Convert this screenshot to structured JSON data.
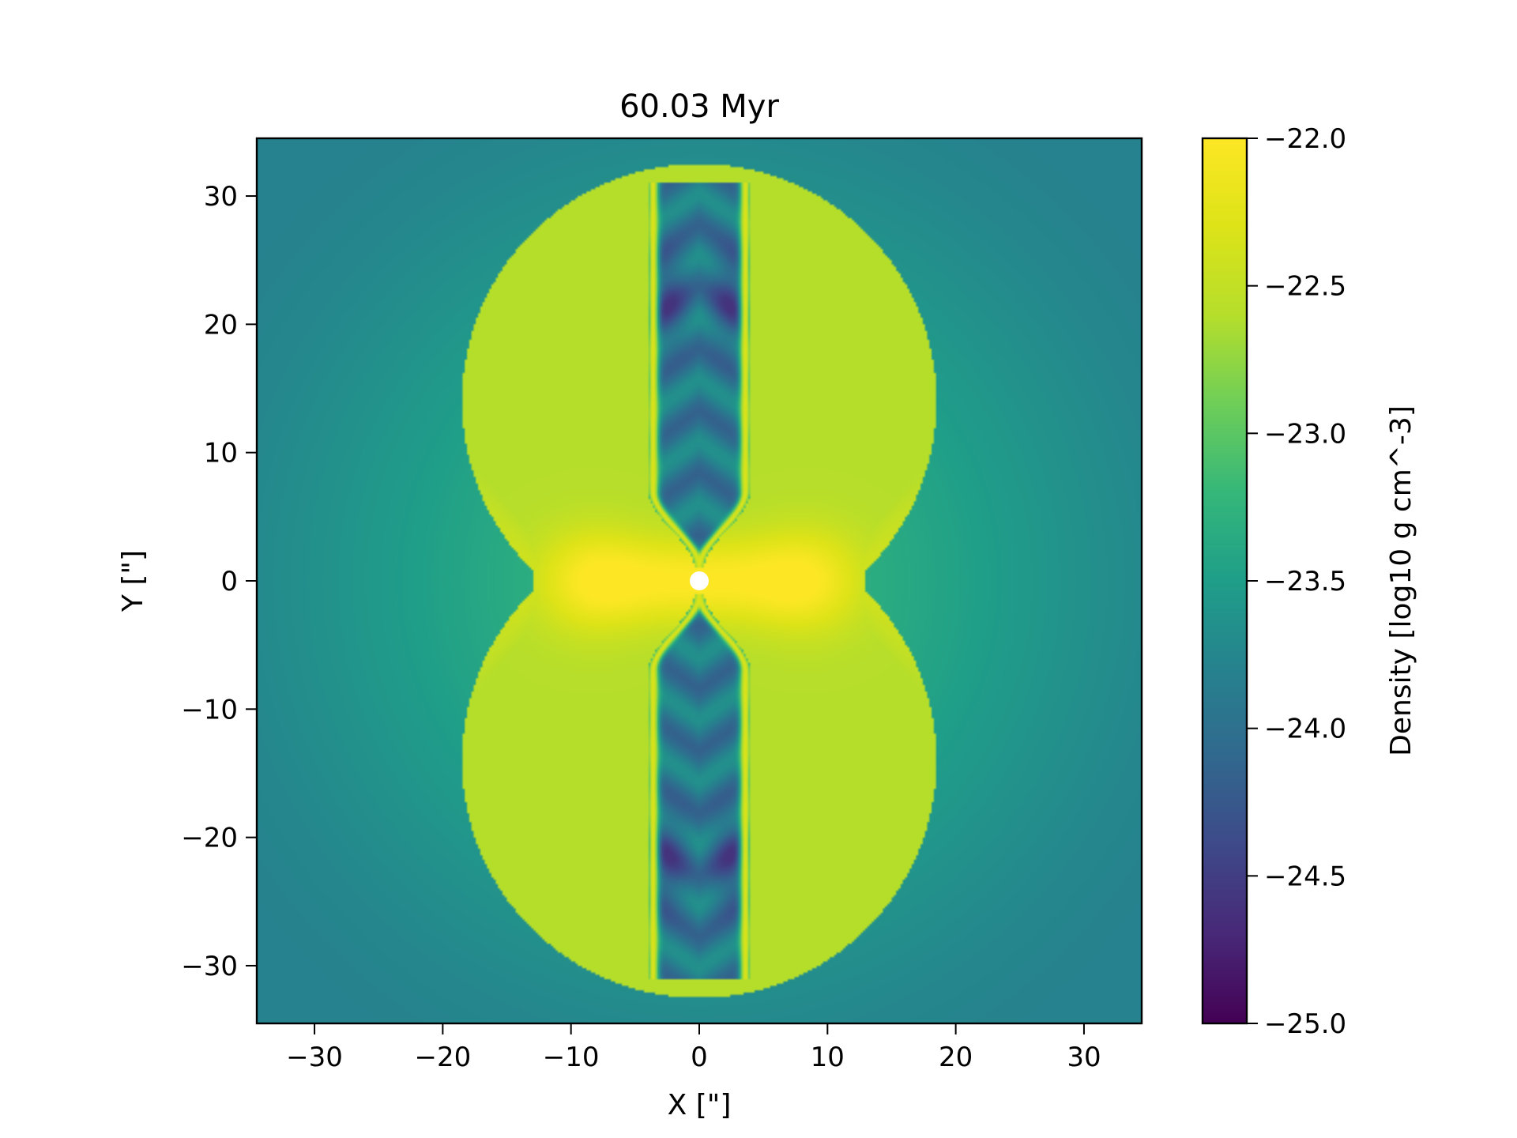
{
  "chart_data": {
    "type": "heatmap",
    "title": "60.03 Myr",
    "xlabel": "X [\"]",
    "ylabel": "Y [\"]",
    "xlim": [
      -34.5,
      34.5
    ],
    "ylim": [
      -34.5,
      34.5
    ],
    "xticks": [
      -30,
      -20,
      -10,
      0,
      10,
      20,
      30
    ],
    "yticks": [
      -30,
      -20,
      -10,
      0,
      10,
      20,
      30
    ],
    "xtick_labels": [
      "−30",
      "−20",
      "−10",
      "0",
      "10",
      "20",
      "30"
    ],
    "ytick_labels": [
      "−30",
      "−20",
      "−10",
      "0",
      "10",
      "20",
      "30"
    ],
    "grid": false,
    "colormap": "viridis",
    "colorbar": {
      "label": "Density [log10 g cm^-3]",
      "range": [
        -25.0,
        -22.0
      ],
      "ticks": [
        -22.0,
        -22.5,
        -23.0,
        -23.5,
        -24.0,
        -24.5,
        -25.0
      ],
      "tick_labels": [
        "−22.0",
        "−22.5",
        "−23.0",
        "−23.5",
        "−24.0",
        "−24.5",
        "−25.0"
      ]
    },
    "field_description_values": {
      "ambient_corner": -23.8,
      "ambient_near_shell": -23.2,
      "shell_rim": -22.85,
      "equatorial_torus_peak": -22.1,
      "jet_cavity_min": -24.6
    },
    "colors": {
      "viridis_low": "#440154",
      "viridis_mid": "#21918c",
      "viridis_high": "#fde725",
      "source_marker": "#ffffff"
    }
  }
}
